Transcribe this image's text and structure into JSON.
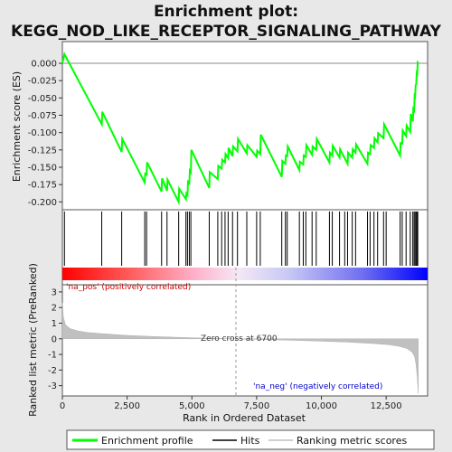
{
  "chart_data": {
    "type": "line",
    "title_lines": [
      "Enrichment plot:",
      "KEGG_NOD_LIKE_RECEPTOR_SIGNALING_PATHWAY"
    ],
    "top_panel": {
      "ylabel": "Enrichment score (ES)",
      "ylim": [
        -0.21,
        0.03
      ],
      "yticks": [
        0.0,
        -0.025,
        -0.05,
        -0.075,
        -0.1,
        -0.125,
        -0.15,
        -0.175,
        -0.2
      ],
      "ytick_labels": [
        "0.000",
        "-0.025",
        "-0.050",
        "-0.075",
        "-0.100",
        "-0.125",
        "-0.150",
        "-0.175",
        "-0.200"
      ],
      "series_name": "Enrichment profile",
      "color": "#00ff00",
      "x": [
        0,
        80,
        1520,
        1540,
        2290,
        2310,
        3180,
        3200,
        3250,
        3270,
        3830,
        3850,
        4040,
        4060,
        4490,
        4510,
        4770,
        4790,
        4830,
        4850,
        4900,
        4920,
        4960,
        4980,
        5670,
        5690,
        6000,
        6020,
        6150,
        6170,
        6280,
        6300,
        6400,
        6420,
        6570,
        6590,
        6760,
        6780,
        7120,
        7140,
        7500,
        7520,
        7640,
        7660,
        8470,
        8490,
        8610,
        8630,
        8680,
        8700,
        9150,
        9170,
        9300,
        9320,
        9400,
        9420,
        9640,
        9660,
        9800,
        9820,
        10310,
        10330,
        10420,
        10440,
        10700,
        10720,
        11010,
        11030,
        11190,
        11210,
        11320,
        11340,
        11780,
        11800,
        11880,
        11900,
        12030,
        12050,
        12170,
        12190,
        12400,
        12420,
        13040,
        13060,
        13120,
        13140,
        13270,
        13290,
        13430,
        13450,
        13530,
        13550,
        13580,
        13600,
        13620,
        13640,
        13660,
        13680,
        13700,
        13720,
        13740
      ],
      "y": [
        0.0,
        0.013,
        -0.088,
        -0.07,
        -0.128,
        -0.109,
        -0.172,
        -0.158,
        -0.162,
        -0.143,
        -0.185,
        -0.166,
        -0.184,
        -0.168,
        -0.2,
        -0.181,
        -0.196,
        -0.188,
        -0.19,
        -0.171,
        -0.173,
        -0.155,
        -0.157,
        -0.125,
        -0.18,
        -0.157,
        -0.167,
        -0.148,
        -0.152,
        -0.139,
        -0.143,
        -0.131,
        -0.137,
        -0.122,
        -0.134,
        -0.12,
        -0.127,
        -0.109,
        -0.13,
        -0.118,
        -0.135,
        -0.126,
        -0.131,
        -0.103,
        -0.164,
        -0.141,
        -0.145,
        -0.133,
        -0.134,
        -0.12,
        -0.154,
        -0.142,
        -0.146,
        -0.133,
        -0.135,
        -0.118,
        -0.132,
        -0.12,
        -0.125,
        -0.109,
        -0.143,
        -0.129,
        -0.133,
        -0.119,
        -0.136,
        -0.124,
        -0.145,
        -0.129,
        -0.136,
        -0.124,
        -0.129,
        -0.117,
        -0.145,
        -0.129,
        -0.131,
        -0.118,
        -0.122,
        -0.108,
        -0.114,
        -0.101,
        -0.108,
        -0.088,
        -0.133,
        -0.115,
        -0.116,
        -0.097,
        -0.105,
        -0.09,
        -0.099,
        -0.073,
        -0.084,
        -0.066,
        -0.068,
        -0.047,
        -0.048,
        -0.032,
        -0.03,
        -0.014,
        -0.015,
        0.001,
        0.0
      ]
    },
    "hits": [
      80,
      1520,
      2290,
      3180,
      3250,
      3830,
      4040,
      4490,
      4770,
      4830,
      4900,
      4960,
      5670,
      6000,
      6150,
      6280,
      6400,
      6570,
      6760,
      7120,
      7500,
      7640,
      8470,
      8610,
      8680,
      9150,
      9300,
      9400,
      9640,
      9800,
      10310,
      10420,
      10700,
      10900,
      11010,
      11190,
      11320,
      11780,
      11880,
      12030,
      12170,
      12400,
      12500,
      13040,
      13120,
      13270,
      13430,
      13530,
      13580,
      13620,
      13660,
      13700,
      13720
    ],
    "bottom_panel": {
      "ylabel_line1": "Ranked list metric (PreRanked)",
      "ylim": [
        -3.6,
        3.4
      ],
      "yticks": [
        3,
        2,
        1,
        0,
        -1,
        -2,
        -3
      ],
      "ytick_labels": [
        "3",
        "2",
        "1",
        "0",
        "-1",
        "-2",
        "-3"
      ],
      "metric_x": [
        0,
        40,
        120,
        300,
        600,
        1000,
        1600,
        2500,
        3500,
        4500,
        5500,
        6700,
        8000,
        9000,
        10000,
        11000,
        12000,
        12600,
        13000,
        13300,
        13500,
        13600,
        13650,
        13700,
        13740
      ],
      "metric_y": [
        2.3,
        1.4,
        0.9,
        0.65,
        0.5,
        0.4,
        0.32,
        0.22,
        0.15,
        0.09,
        0.04,
        0.0,
        -0.06,
        -0.1,
        -0.15,
        -0.21,
        -0.3,
        -0.38,
        -0.48,
        -0.62,
        -0.85,
        -1.15,
        -1.6,
        -2.4,
        -3.5
      ]
    },
    "xlabel": "Rank in Ordered Dataset",
    "xlim": [
      0,
      14100
    ],
    "xticks": [
      0,
      2500,
      5000,
      7500,
      10000,
      12500
    ],
    "xtick_labels": [
      "0",
      "2,500",
      "5,000",
      "7,500",
      "10,000",
      "12,500"
    ],
    "zero_cross_rank": 6700,
    "annotations": {
      "pos_label": "'na_pos' (positively correlated)",
      "neg_label": "'na_neg' (negatively correlated)",
      "zero_cross": "Zero cross at 6700"
    },
    "legend": {
      "position": "bottom",
      "items": [
        {
          "label": "Enrichment profile",
          "color": "#00ff00"
        },
        {
          "label": "Hits",
          "color": "#000000"
        },
        {
          "label": "Ranking metric scores",
          "color": "#c0c0c0"
        }
      ]
    }
  }
}
